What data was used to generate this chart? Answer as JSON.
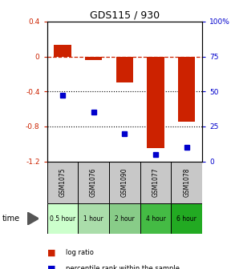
{
  "title": "GDS115 / 930",
  "samples": [
    "GSM1075",
    "GSM1076",
    "GSM1090",
    "GSM1077",
    "GSM1078"
  ],
  "time_labels": [
    "0.5 hour",
    "1 hour",
    "2 hour",
    "4 hour",
    "6 hour"
  ],
  "time_colors": [
    "#ccffcc",
    "#aaddaa",
    "#88cc88",
    "#44bb44",
    "#22aa22"
  ],
  "log_ratio": [
    0.13,
    -0.04,
    -0.3,
    -1.05,
    -0.75
  ],
  "percentile": [
    47,
    35,
    20,
    5,
    10
  ],
  "bar_color": "#cc2200",
  "dot_color": "#0000cc",
  "ylim_left": [
    -1.2,
    0.4
  ],
  "ylim_right": [
    0,
    100
  ],
  "yticks_left": [
    0.4,
    0.0,
    -0.4,
    -0.8,
    -1.2
  ],
  "yticks_right": [
    100,
    75,
    50,
    25,
    0
  ],
  "hline_y": 0,
  "dotted_lines": [
    -0.4,
    -0.8
  ],
  "legend_log_ratio": "log ratio",
  "legend_percentile": "percentile rank within the sample",
  "time_label": "time",
  "gsm_bg": "#c8c8c8",
  "bar_width": 0.55
}
